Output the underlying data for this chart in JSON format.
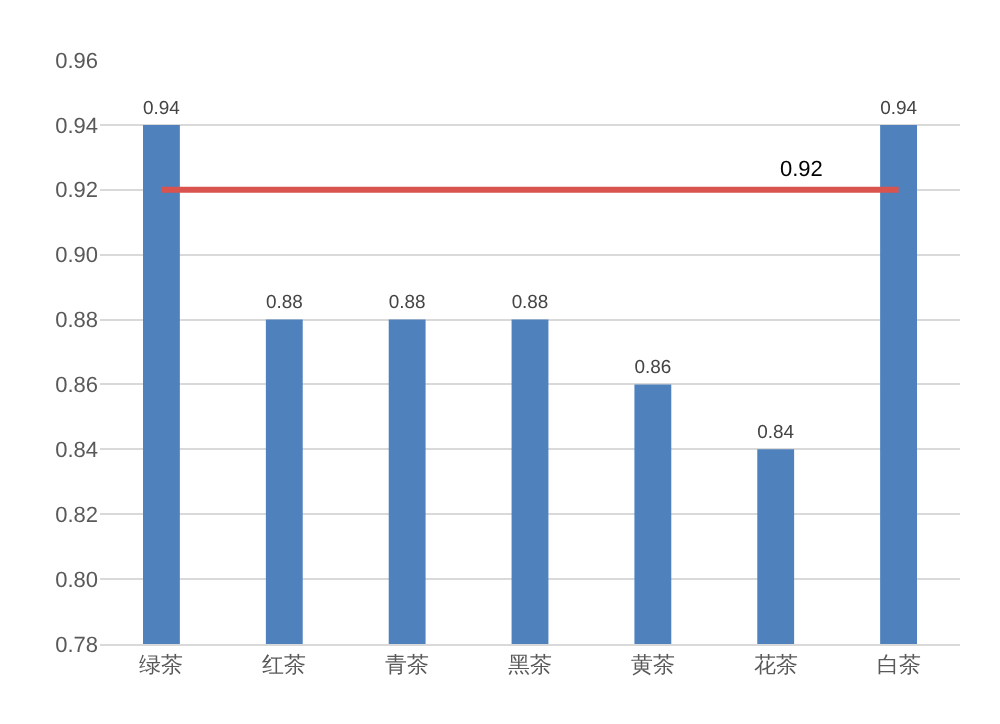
{
  "chart_data": {
    "type": "bar",
    "categories": [
      "绿茶",
      "红茶",
      "青茶",
      "黑茶",
      "黄茶",
      "花茶",
      "白茶"
    ],
    "values": [
      0.94,
      0.88,
      0.88,
      0.88,
      0.86,
      0.84,
      0.94
    ],
    "color": "#4f81bd",
    "data_labels": true,
    "ylim": [
      0.78,
      0.96
    ],
    "yticks": [
      0.78,
      {
        "value": 0.8,
        "label": "0.80"
      },
      0.82,
      0.84,
      0.86,
      0.88,
      {
        "value": 0.9,
        "label": "0.90"
      },
      0.92,
      0.94,
      0.96
    ],
    "grid": "y",
    "ref_lines": [
      {
        "axis": "y",
        "value": 0.92,
        "label": "0.92",
        "color": "#d9534f",
        "line_style": "solid"
      }
    ]
  }
}
